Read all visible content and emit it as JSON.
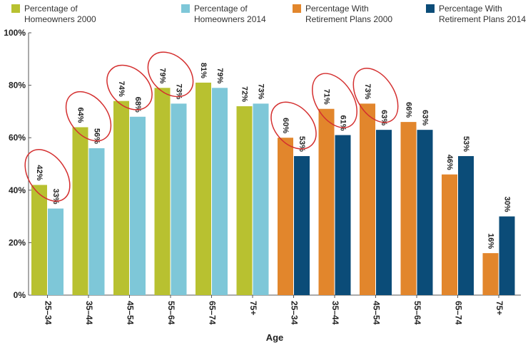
{
  "chart_data": {
    "type": "bar",
    "xlabel": "Age",
    "ylabel": "",
    "ylim": [
      0,
      100
    ],
    "yticks": [
      "0%",
      "20%",
      "40%",
      "60%",
      "80%",
      "100%"
    ],
    "groups": [
      {
        "categories": [
          "25–34",
          "35–44",
          "45–54",
          "55–64",
          "65–74",
          "75+"
        ],
        "series": [
          {
            "name": "Percentage of Homeowners 2000",
            "color": "#b8c130",
            "values": [
              42,
              64,
              74,
              79,
              81,
              72
            ],
            "labels": [
              "42%",
              "64%",
              "74%",
              "79%",
              "81%",
              "72%"
            ]
          },
          {
            "name": "Percentage of Homeowners 2014",
            "color": "#7ec7d8",
            "values": [
              33,
              56,
              68,
              73,
              79,
              73
            ],
            "labels": [
              "33%",
              "56%",
              "68%",
              "73%",
              "79%",
              "73%"
            ]
          }
        ]
      },
      {
        "categories": [
          "25–34",
          "35–44",
          "45–54",
          "55–64",
          "65–74",
          "75+"
        ],
        "series": [
          {
            "name": "Percentage With Retirement Plans 2000",
            "color": "#e2862c",
            "values": [
              60,
              71,
              73,
              66,
              46,
              16
            ],
            "labels": [
              "60%",
              "71%",
              "73%",
              "66%",
              "46%",
              "16%"
            ]
          },
          {
            "name": "Percentage With Retirement Plans 2014",
            "color": "#0b4c78",
            "values": [
              53,
              61,
              63,
              63,
              53,
              30
            ],
            "labels": [
              "53%",
              "61%",
              "63%",
              "63%",
              "53%",
              "30%"
            ]
          }
        ]
      }
    ],
    "legend": {
      "items": [
        {
          "lines": [
            "Percentage of",
            "Homeowners 2000"
          ],
          "color": "#b8c130"
        },
        {
          "lines": [
            "Percentage of",
            "Homeowners 2014"
          ],
          "color": "#7ec7d8"
        },
        {
          "lines": [
            "Percentage With",
            "Retirement Plans 2000"
          ],
          "color": "#e2862c"
        },
        {
          "lines": [
            "Percentage With",
            "Retirement Plans 2014"
          ],
          "color": "#0b4c78"
        }
      ]
    },
    "highlighted_pairs": [
      {
        "group": 0,
        "category": 0
      },
      {
        "group": 0,
        "category": 1
      },
      {
        "group": 0,
        "category": 2
      },
      {
        "group": 0,
        "category": 3
      },
      {
        "group": 1,
        "category": 0
      },
      {
        "group": 1,
        "category": 1
      },
      {
        "group": 1,
        "category": 2
      }
    ],
    "highlight_color": "#d42f2f",
    "grid": false
  }
}
